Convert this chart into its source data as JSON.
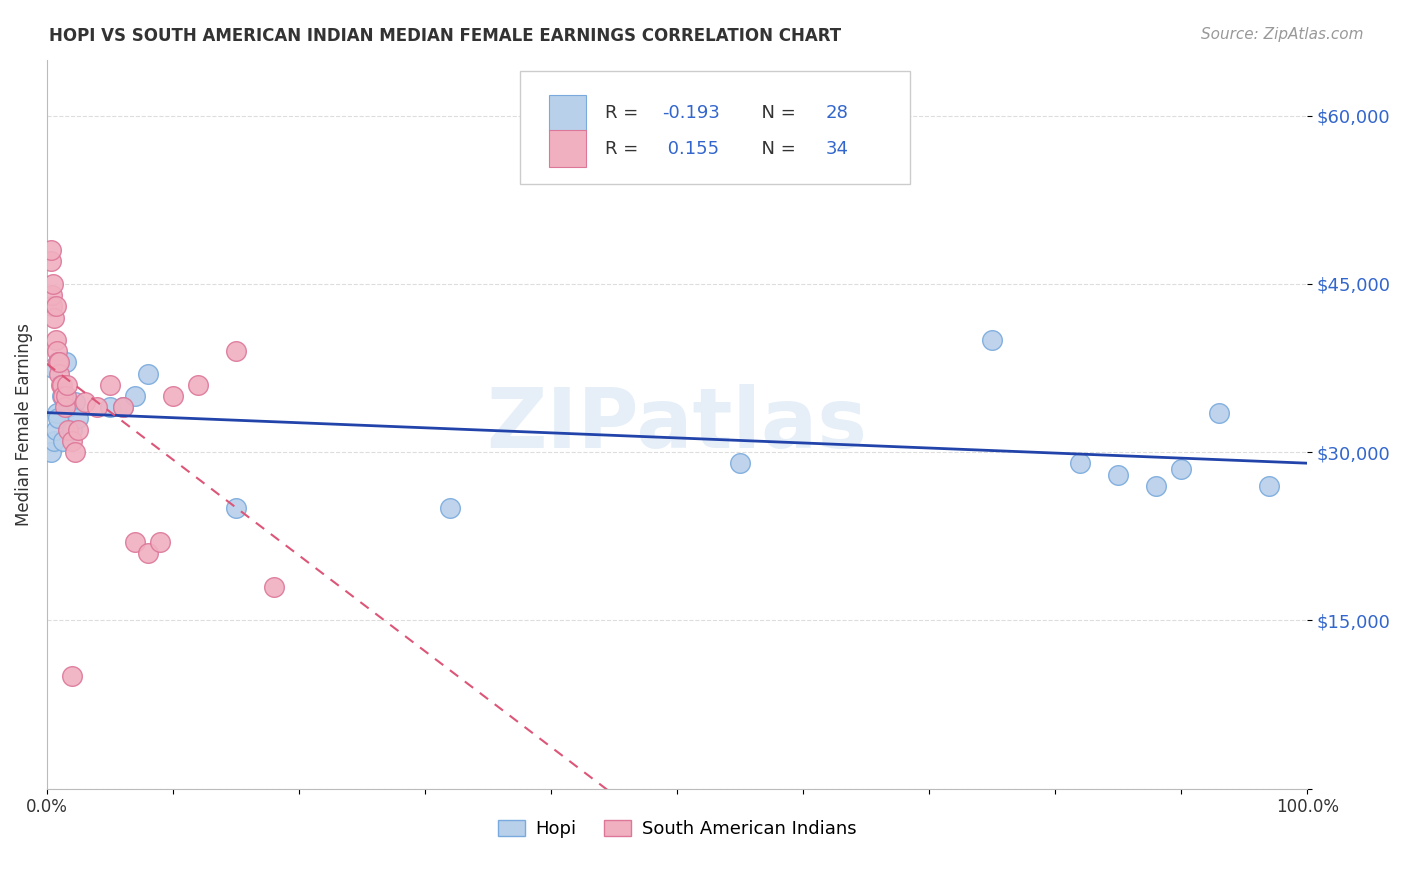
{
  "title": "HOPI VS SOUTH AMERICAN INDIAN MEDIAN FEMALE EARNINGS CORRELATION CHART",
  "source": "Source: ZipAtlas.com",
  "ylabel": "Median Female Earnings",
  "xlim": [
    0,
    1.0
  ],
  "ylim": [
    0,
    65000
  ],
  "yticks": [
    0,
    15000,
    30000,
    45000,
    60000
  ],
  "ytick_labels": [
    "",
    "$15,000",
    "$30,000",
    "$45,000",
    "$60,000"
  ],
  "background_color": "#ffffff",
  "grid_color": "#dddddd",
  "watermark": "ZIPatlas",
  "hopi_color": "#b8d0ea",
  "hopi_edge_color": "#7aaadd",
  "south_color": "#f0b0c0",
  "south_edge_color": "#dd7799",
  "hopi_line_color": "#2244aa",
  "south_line_color": "#dd5577",
  "hopi_R": -0.193,
  "hopi_N": 28,
  "south_R": 0.155,
  "south_N": 34,
  "hopi_x": [
    0.003,
    0.005,
    0.006,
    0.007,
    0.008,
    0.009,
    0.01,
    0.012,
    0.013,
    0.015,
    0.017,
    0.02,
    0.022,
    0.025,
    0.05,
    0.06,
    0.07,
    0.08,
    0.15,
    0.32,
    0.55,
    0.75,
    0.82,
    0.85,
    0.88,
    0.9,
    0.93,
    0.97
  ],
  "hopi_y": [
    30000,
    37500,
    31000,
    32000,
    33500,
    33000,
    38000,
    35000,
    31000,
    38000,
    34000,
    32000,
    34500,
    33000,
    34000,
    34000,
    35000,
    37000,
    25000,
    25000,
    29000,
    40000,
    29000,
    28000,
    27000,
    28500,
    33500,
    27000
  ],
  "south_x": [
    0.003,
    0.003,
    0.004,
    0.004,
    0.005,
    0.006,
    0.007,
    0.007,
    0.008,
    0.009,
    0.01,
    0.01,
    0.011,
    0.012,
    0.013,
    0.014,
    0.015,
    0.016,
    0.017,
    0.02,
    0.022,
    0.025,
    0.03,
    0.04,
    0.05,
    0.06,
    0.07,
    0.08,
    0.09,
    0.1,
    0.12,
    0.15,
    0.18,
    0.02
  ],
  "south_y": [
    47000,
    48000,
    43000,
    44000,
    45000,
    42000,
    43000,
    40000,
    39000,
    38000,
    37000,
    38000,
    36000,
    36000,
    35000,
    34000,
    35000,
    36000,
    32000,
    31000,
    30000,
    32000,
    34500,
    34000,
    36000,
    34000,
    22000,
    21000,
    22000,
    35000,
    36000,
    39000,
    18000,
    10000
  ]
}
